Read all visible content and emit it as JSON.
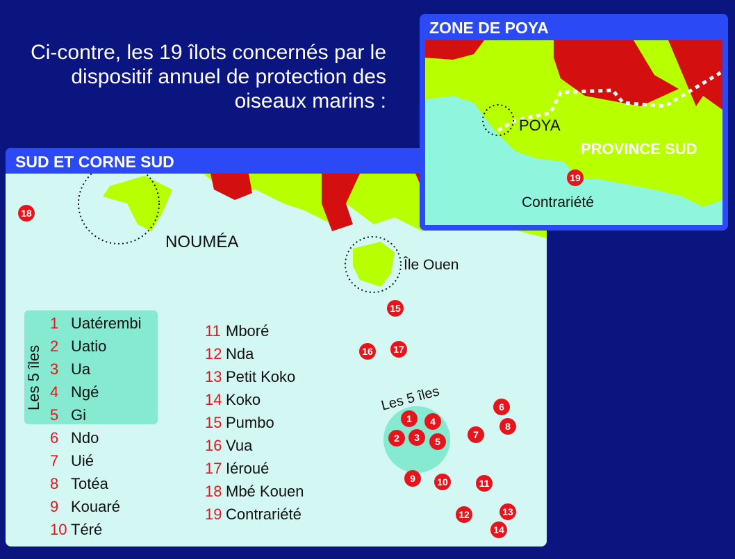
{
  "intro_text": "Ci-contre, les 19 îlots concernés par le dispositif annuel de protection des oiseaux marins :",
  "main_map": {
    "title": "SUD ET CORNE SUD",
    "labels": {
      "noumea": "NOUMÉA",
      "ile_ouen": "Île Ouen",
      "cluster": "Les 5 îles"
    },
    "legend_group_label": "Les 5 îles",
    "islets": [
      {
        "num": "1",
        "name": "Uatérembi"
      },
      {
        "num": "2",
        "name": "Uatio"
      },
      {
        "num": "3",
        "name": "Ua"
      },
      {
        "num": "4",
        "name": "Ngé"
      },
      {
        "num": "5",
        "name": "Gi"
      },
      {
        "num": "6",
        "name": "Ndo"
      },
      {
        "num": "7",
        "name": "Uié"
      },
      {
        "num": "8",
        "name": "Totéa"
      },
      {
        "num": "9",
        "name": "Kouaré"
      },
      {
        "num": "10",
        "name": "Téré"
      },
      {
        "num": "11",
        "name": "Mboré"
      },
      {
        "num": "12",
        "name": "Nda"
      },
      {
        "num": "13",
        "name": "Petit Koko"
      },
      {
        "num": "14",
        "name": "Koko"
      },
      {
        "num": "15",
        "name": "Pumbo"
      },
      {
        "num": "16",
        "name": "Vua"
      },
      {
        "num": "17",
        "name": "Iéroué"
      },
      {
        "num": "18",
        "name": "Mbé Kouen"
      },
      {
        "num": "19",
        "name": "Contrariété"
      }
    ]
  },
  "inset_map": {
    "title": "ZONE DE POYA",
    "labels": {
      "poya": "POYA",
      "province": "PROVINCE SUD",
      "contrariete": "Contrariété"
    },
    "marker": "19"
  },
  "colors": {
    "background": "#0a1580",
    "header": "#2b49f5",
    "sea": "#d3f7f2",
    "land": "#b8ff00",
    "protected": "#d40f0f",
    "marker": "#e8141b"
  }
}
